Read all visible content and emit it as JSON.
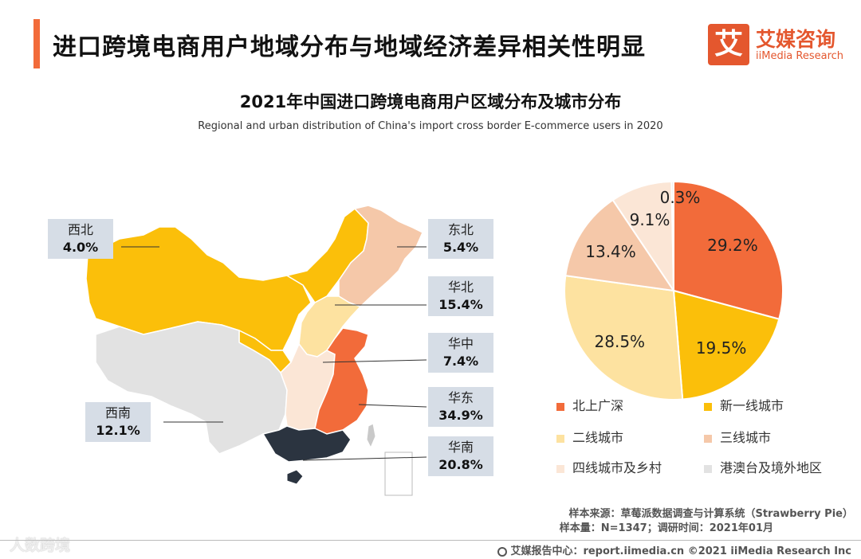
{
  "header": {
    "title": "进口跨境电商用户地域分布与地域经济差异相关性明显",
    "accent_color": "#f26b3a"
  },
  "logo": {
    "icon_char": "艾",
    "name_cn": "艾媒咨询",
    "name_en": "iiMedia Research",
    "color": "#e4572e"
  },
  "chart_data": [
    {
      "type": "map",
      "title": "2021年中国进口跨境电商用户区域分布及城市分布",
      "subtitle": "Regional and urban distribution of China's import cross border E-commerce users in 2020",
      "regions": [
        {
          "name": "西北",
          "value": "4.0%",
          "color": "#fbbf0a"
        },
        {
          "name": "东北",
          "value": "5.4%",
          "color": "#f5c8a9"
        },
        {
          "name": "华北",
          "value": "15.4%",
          "color": "#fde2a0"
        },
        {
          "name": "华中",
          "value": "7.4%",
          "color": "#fbe6d6"
        },
        {
          "name": "华东",
          "value": "34.9%",
          "color": "#f26b3a"
        },
        {
          "name": "西南",
          "value": "12.1%",
          "color": "#e2e2e2"
        },
        {
          "name": "华南",
          "value": "20.8%",
          "color": "#2b3440"
        }
      ]
    },
    {
      "type": "pie",
      "slices": [
        {
          "label": "北上广深",
          "value": 29.2,
          "value_label": "29.2%",
          "color": "#f26b3a"
        },
        {
          "label": "新一线城市",
          "value": 19.5,
          "value_label": "19.5%",
          "color": "#fbbf0a"
        },
        {
          "label": "二线城市",
          "value": 28.5,
          "value_label": "28.5%",
          "color": "#fde2a0"
        },
        {
          "label": "三线城市",
          "value": 13.4,
          "value_label": "13.4%",
          "color": "#f5c8a9"
        },
        {
          "label": "四线城市及乡村",
          "value": 9.1,
          "value_label": "9.1%",
          "color": "#fbe6d6"
        },
        {
          "label": "港澳台及境外地区",
          "value": 0.3,
          "value_label": "0.3%",
          "color": "#e2e2e2"
        }
      ],
      "legend_placement": "bottom"
    }
  ],
  "footnotes": {
    "source": "样本来源：草莓派数据调查与计算系统（Strawberry Pie）",
    "sample": "样本量：N=1347；调研时间：2021年01月"
  },
  "footer": {
    "text": "艾媒报告中心：report.iimedia.cn   ©2021  iiMedia Research  Inc"
  },
  "watermark": "人数跨境"
}
